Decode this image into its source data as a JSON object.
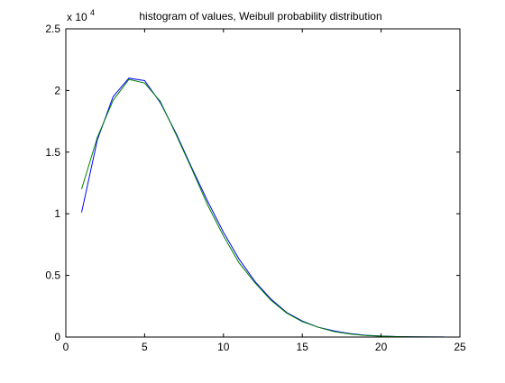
{
  "chart_data": {
    "type": "line",
    "title": "histogram of values, Weibull probability distribution",
    "xlabel": "",
    "ylabel": "",
    "xlim": [
      0,
      25
    ],
    "ylim": [
      0,
      25000
    ],
    "x_ticks": [
      0,
      5,
      10,
      15,
      20,
      25
    ],
    "y_ticks": [
      0,
      5000,
      10000,
      15000,
      20000,
      25000
    ],
    "y_tick_labels": [
      "0",
      "0.5",
      "1",
      "1.5",
      "2",
      "2.5"
    ],
    "y_multiplier_label": "x 10",
    "y_multiplier_exponent": "4",
    "grid": false,
    "series": [
      {
        "color": "#0000ff",
        "x": [
          1,
          2,
          3,
          4,
          5,
          6,
          7,
          8,
          9,
          10,
          11,
          12,
          13,
          14,
          15,
          16,
          17,
          18,
          19,
          20,
          21,
          22,
          23,
          24
        ],
        "y": [
          10100,
          16000,
          19500,
          21000,
          20800,
          19000,
          16500,
          13700,
          11000,
          8500,
          6300,
          4500,
          3100,
          2000,
          1300,
          800,
          500,
          280,
          150,
          80,
          40,
          20,
          10,
          5
        ]
      },
      {
        "color": "#008000",
        "x": [
          1,
          2,
          3,
          4,
          5,
          6,
          7,
          8,
          9,
          10,
          11,
          12,
          13,
          14,
          15,
          16,
          17,
          18,
          19,
          20,
          21,
          22,
          23,
          24
        ],
        "y": [
          12000,
          16200,
          19200,
          20900,
          20600,
          19100,
          16400,
          13600,
          10700,
          8200,
          6000,
          4400,
          3000,
          1950,
          1250,
          800,
          450,
          250,
          130,
          70,
          35,
          15,
          8,
          3
        ]
      }
    ]
  }
}
